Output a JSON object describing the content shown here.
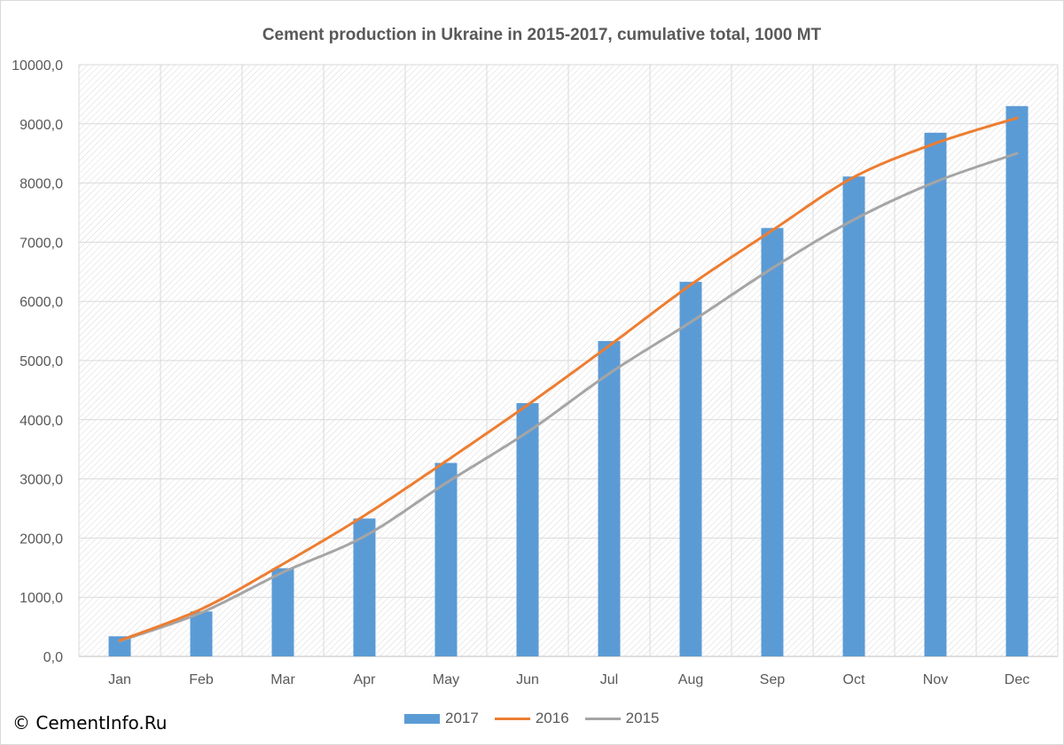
{
  "footer": {
    "copyright": "© CementInfo.Ru"
  },
  "legend": {
    "items": [
      {
        "label": "2017",
        "kind": "bar",
        "color": "#5b9bd5"
      },
      {
        "label": "2016",
        "kind": "line",
        "color": "#ed7d31"
      },
      {
        "label": "2015",
        "kind": "line",
        "color": "#a5a5a5"
      }
    ]
  },
  "chart_data": {
    "type": "bar",
    "title": "Cement production in Ukraine in 2015-2017, cumulative total, 1000 MT",
    "xlabel": "",
    "ylabel": "",
    "categories": [
      "Jan",
      "Feb",
      "Mar",
      "Apr",
      "May",
      "Jun",
      "Jul",
      "Aug",
      "Sep",
      "Oct",
      "Nov",
      "Dec"
    ],
    "ylim": [
      0,
      10000
    ],
    "y_ticks": [
      0,
      1000,
      2000,
      3000,
      4000,
      5000,
      6000,
      7000,
      8000,
      9000,
      10000
    ],
    "y_tick_labels": [
      "0,0",
      "1000,0",
      "2000,0",
      "3000,0",
      "4000,0",
      "5000,0",
      "6000,0",
      "7000,0",
      "8000,0",
      "9000,0",
      "10000,0"
    ],
    "grid": true,
    "legend_position": "bottom",
    "series": [
      {
        "name": "2017",
        "type": "bar",
        "color": "#5b9bd5",
        "values": [
          340,
          760,
          1490,
          2330,
          3270,
          4280,
          5330,
          6330,
          7240,
          8110,
          8850,
          9300
        ]
      },
      {
        "name": "2016",
        "type": "line",
        "smooth": true,
        "color": "#ed7d31",
        "values": [
          270,
          800,
          1560,
          2380,
          3300,
          4250,
          5250,
          6280,
          7200,
          8100,
          8670,
          9100
        ]
      },
      {
        "name": "2015",
        "type": "line",
        "smooth": true,
        "color": "#a5a5a5",
        "values": [
          260,
          740,
          1420,
          2030,
          2930,
          3790,
          4780,
          5650,
          6560,
          7380,
          8020,
          8500
        ]
      }
    ]
  }
}
